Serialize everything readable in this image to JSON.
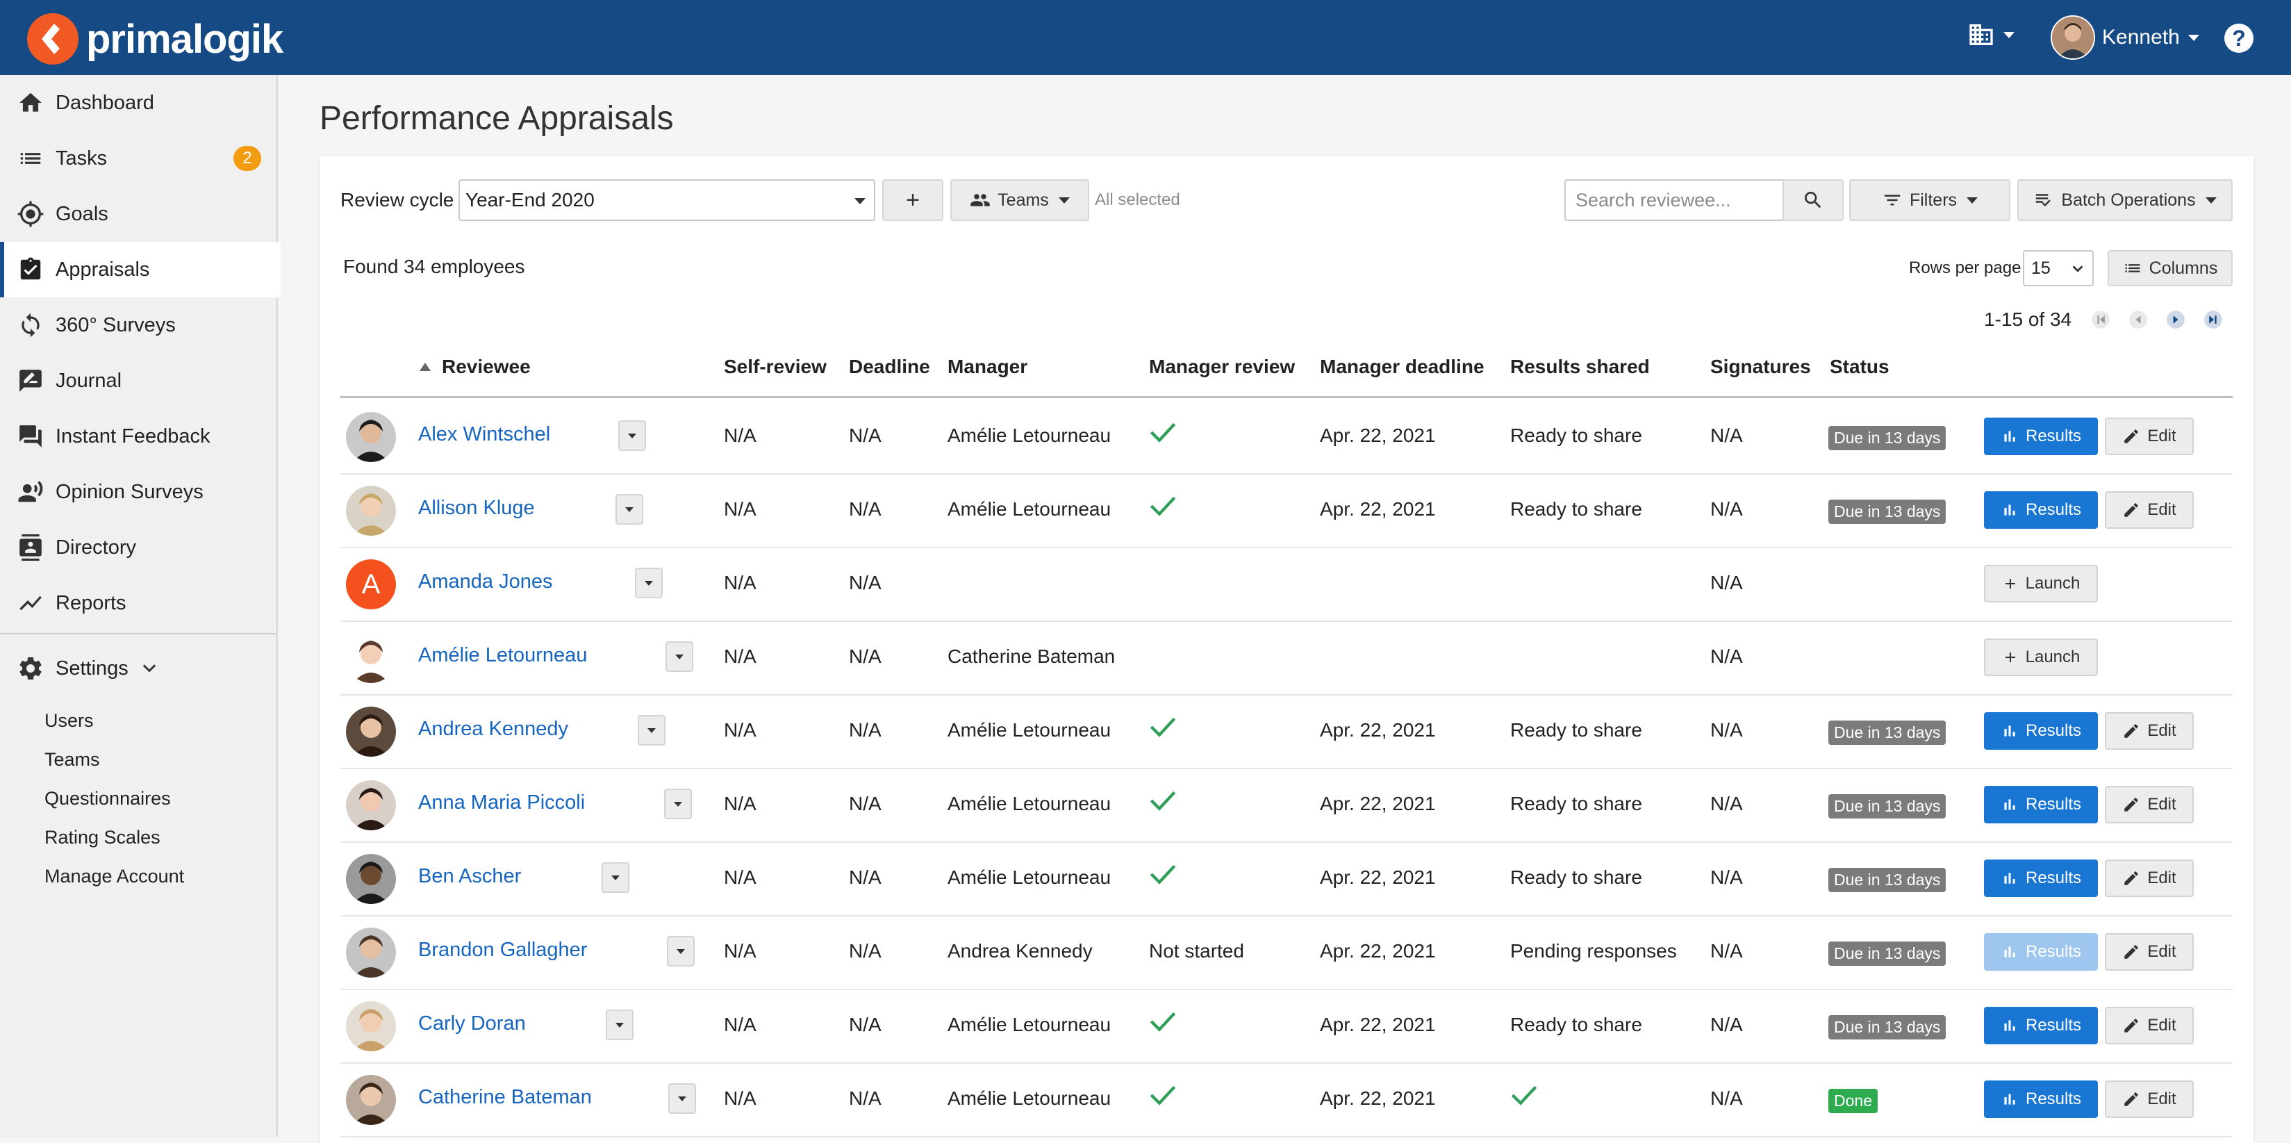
{
  "brand": {
    "name": "primalogik",
    "accent": "#154a85",
    "logo_color": "#f15a24"
  },
  "topbar": {
    "user_name": "Kenneth",
    "org_icon": "building-icon",
    "help_label": "?"
  },
  "sidebar": {
    "items": [
      {
        "label": "Dashboard",
        "icon": "home-icon"
      },
      {
        "label": "Tasks",
        "icon": "list-icon",
        "badge": "2"
      },
      {
        "label": "Goals",
        "icon": "target-icon"
      },
      {
        "label": "Appraisals",
        "icon": "clipboard-check-icon",
        "active": true
      },
      {
        "label": "360° Surveys",
        "icon": "cycle-icon"
      },
      {
        "label": "Journal",
        "icon": "journal-icon"
      },
      {
        "label": "Instant Feedback",
        "icon": "chat-icon"
      },
      {
        "label": "Opinion Surveys",
        "icon": "people-voice-icon"
      },
      {
        "label": "Directory",
        "icon": "contact-card-icon"
      },
      {
        "label": "Reports",
        "icon": "trend-icon"
      }
    ],
    "settings_label": "Settings",
    "sub_items": [
      "Users",
      "Teams",
      "Questionnaires",
      "Rating Scales",
      "Manage Account"
    ]
  },
  "page": {
    "title": "Performance Appraisals"
  },
  "toolbar": {
    "review_cycle_label": "Review cycle",
    "review_cycle_value": "Year-End 2020",
    "add_label": "+",
    "teams_label": "Teams",
    "all_selected": "All selected",
    "search_placeholder": "Search reviewee...",
    "filters_label": "Filters",
    "batch_label": "Batch Operations"
  },
  "summary": {
    "found": "Found 34 employees",
    "rows_per_page_label": "Rows per page",
    "rows_per_page": "15",
    "columns_label": "Columns",
    "range": "1-15 of 34"
  },
  "table": {
    "headers": [
      "Reviewee",
      "Self-review",
      "Deadline",
      "Manager",
      "Manager review",
      "Manager deadline",
      "Results shared",
      "Signatures",
      "Status"
    ],
    "rows": [
      {
        "name": "Alex Wintschel",
        "self": "N/A",
        "deadline": "N/A",
        "manager": "Amélie Letourneau",
        "mgr_review": "check",
        "mgr_deadline": "Apr. 22, 2021",
        "results": "Ready to share",
        "signatures": "N/A",
        "status": "Due in 13 days",
        "action": "results"
      },
      {
        "name": "Allison Kluge",
        "self": "N/A",
        "deadline": "N/A",
        "manager": "Amélie Letourneau",
        "mgr_review": "check",
        "mgr_deadline": "Apr. 22, 2021",
        "results": "Ready to share",
        "signatures": "N/A",
        "status": "Due in 13 days",
        "action": "results"
      },
      {
        "name": "Amanda Jones",
        "initial": "A",
        "self": "N/A",
        "deadline": "N/A",
        "manager": "",
        "mgr_review": "",
        "mgr_deadline": "",
        "results": "",
        "signatures": "N/A",
        "status": "",
        "action": "launch"
      },
      {
        "name": "Amélie Letourneau",
        "self": "N/A",
        "deadline": "N/A",
        "manager": "Catherine Bateman",
        "mgr_review": "",
        "mgr_deadline": "",
        "results": "",
        "signatures": "N/A",
        "status": "",
        "action": "launch"
      },
      {
        "name": "Andrea Kennedy",
        "self": "N/A",
        "deadline": "N/A",
        "manager": "Amélie Letourneau",
        "mgr_review": "check",
        "mgr_deadline": "Apr. 22, 2021",
        "results": "Ready to share",
        "signatures": "N/A",
        "status": "Due in 13 days",
        "action": "results"
      },
      {
        "name": "Anna Maria Piccoli",
        "self": "N/A",
        "deadline": "N/A",
        "manager": "Amélie Letourneau",
        "mgr_review": "check",
        "mgr_deadline": "Apr. 22, 2021",
        "results": "Ready to share",
        "signatures": "N/A",
        "status": "Due in 13 days",
        "action": "results"
      },
      {
        "name": "Ben Ascher",
        "self": "N/A",
        "deadline": "N/A",
        "manager": "Amélie Letourneau",
        "mgr_review": "check",
        "mgr_deadline": "Apr. 22, 2021",
        "results": "Ready to share",
        "signatures": "N/A",
        "status": "Due in 13 days",
        "action": "results"
      },
      {
        "name": "Brandon Gallagher",
        "self": "N/A",
        "deadline": "N/A",
        "manager": "Andrea Kennedy",
        "mgr_review": "Not started",
        "mgr_deadline": "Apr. 22, 2021",
        "results": "Pending responses",
        "signatures": "N/A",
        "status": "Due in 13 days",
        "action": "results-disabled"
      },
      {
        "name": "Carly Doran",
        "self": "N/A",
        "deadline": "N/A",
        "manager": "Amélie Letourneau",
        "mgr_review": "check",
        "mgr_deadline": "Apr. 22, 2021",
        "results": "Ready to share",
        "signatures": "N/A",
        "status": "Due in 13 days",
        "action": "results"
      },
      {
        "name": "Catherine Bateman",
        "self": "N/A",
        "deadline": "N/A",
        "manager": "Amélie Letourneau",
        "mgr_review": "check",
        "mgr_deadline": "Apr. 22, 2021",
        "results": "check",
        "signatures": "N/A",
        "status": "Done",
        "action": "results"
      }
    ],
    "results_label": "Results",
    "edit_label": "Edit",
    "launch_label": "Launch"
  }
}
